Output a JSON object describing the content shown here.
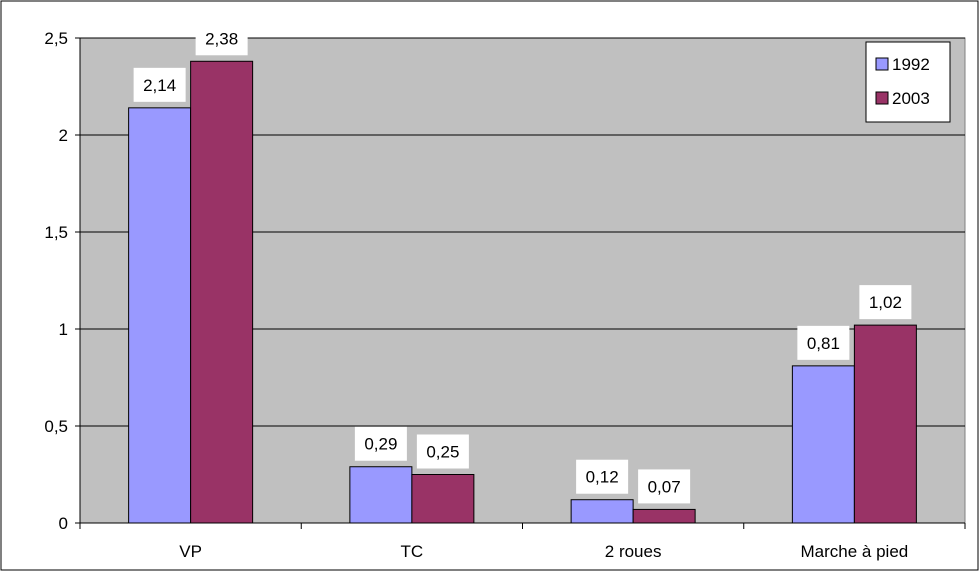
{
  "chart_data": {
    "type": "bar",
    "categories": [
      "VP",
      "TC",
      "2 roues",
      "Marche à pied"
    ],
    "series": [
      {
        "name": "1992",
        "values": [
          2.14,
          0.29,
          0.12,
          0.81
        ],
        "labels": [
          "2,14",
          "0,29",
          "0,12",
          "0,81"
        ],
        "color": "#9999ff"
      },
      {
        "name": "2003",
        "values": [
          2.38,
          0.25,
          0.07,
          1.02
        ],
        "labels": [
          "2,38",
          "0,25",
          "0,07",
          "1,02"
        ],
        "color": "#993366"
      }
    ],
    "ylim": [
      0,
      2.5
    ],
    "yticks": [
      0,
      0.5,
      1,
      1.5,
      2,
      2.5
    ],
    "ytick_labels": [
      "0",
      "0,5",
      "1",
      "1,5",
      "2",
      "2,5"
    ],
    "grid": true,
    "legend_position": "top-right",
    "plot_background": "#c0c0c0"
  }
}
